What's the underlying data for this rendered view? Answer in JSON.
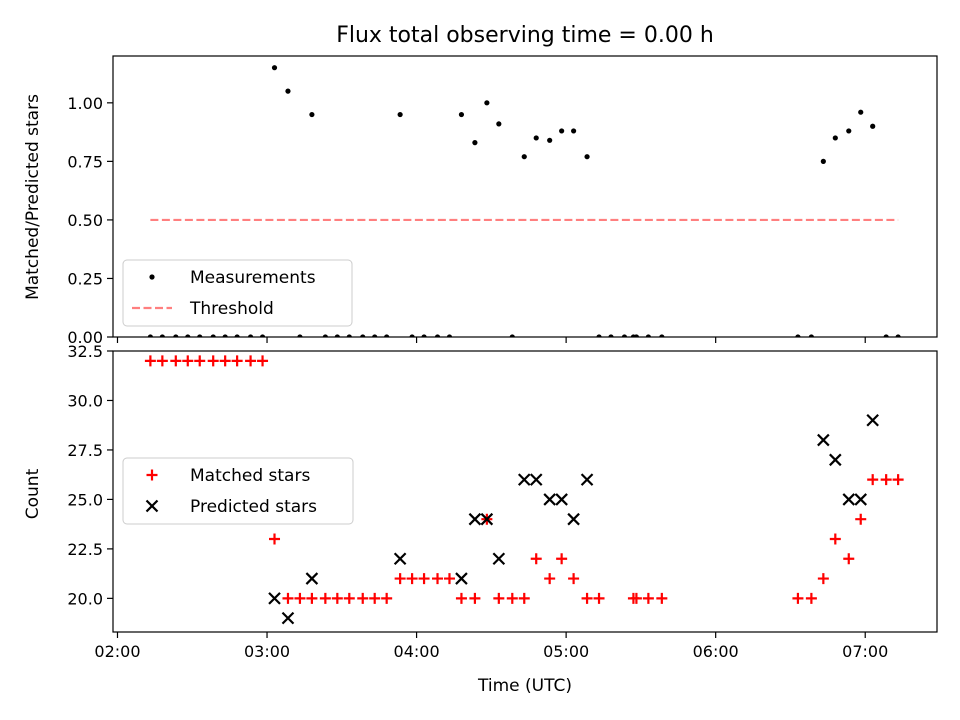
{
  "title": "Flux total observing time = 0.00 h",
  "chart_data": [
    {
      "type": "scatter",
      "ylabel": "Matched/Predicted stars",
      "ylim": [
        0,
        1.2
      ],
      "yticks": [
        0.0,
        0.25,
        0.5,
        0.75,
        1.0
      ],
      "ytick_labels": [
        "0.00",
        "0.25",
        "0.50",
        "0.75",
        "1.00"
      ],
      "xlim_hours": [
        1.97,
        7.48
      ],
      "legend": {
        "placement": "lower-left",
        "entries": [
          "Measurements",
          "Threshold"
        ]
      },
      "series": [
        {
          "name": "Measurements",
          "color": "#000000",
          "marker": "dot",
          "points": [
            [
              2.22,
              0
            ],
            [
              2.3,
              0
            ],
            [
              2.39,
              0
            ],
            [
              2.47,
              0
            ],
            [
              2.55,
              0
            ],
            [
              2.64,
              0
            ],
            [
              2.72,
              0
            ],
            [
              2.8,
              0
            ],
            [
              2.89,
              0
            ],
            [
              2.97,
              0
            ],
            [
              3.05,
              1.15
            ],
            [
              3.14,
              1.05
            ],
            [
              3.22,
              0
            ],
            [
              3.3,
              0.95
            ],
            [
              3.39,
              0
            ],
            [
              3.47,
              0
            ],
            [
              3.55,
              0
            ],
            [
              3.64,
              0
            ],
            [
              3.72,
              0
            ],
            [
              3.8,
              0
            ],
            [
              3.89,
              0.95
            ],
            [
              3.97,
              0
            ],
            [
              4.05,
              0
            ],
            [
              4.14,
              0
            ],
            [
              4.22,
              0
            ],
            [
              4.3,
              0.95
            ],
            [
              4.39,
              0.83
            ],
            [
              4.47,
              1.0
            ],
            [
              4.55,
              0.91
            ],
            [
              4.64,
              0
            ],
            [
              4.72,
              0.77
            ],
            [
              4.8,
              0.85
            ],
            [
              4.89,
              0.84
            ],
            [
              4.97,
              0.88
            ],
            [
              5.05,
              0.88
            ],
            [
              5.14,
              0.77
            ],
            [
              5.22,
              0
            ],
            [
              5.3,
              0
            ],
            [
              5.39,
              0
            ],
            [
              5.45,
              0
            ],
            [
              5.47,
              0
            ],
            [
              5.55,
              0
            ],
            [
              5.64,
              0
            ],
            [
              6.55,
              0
            ],
            [
              6.64,
              0
            ],
            [
              6.72,
              0.75
            ],
            [
              6.8,
              0.85
            ],
            [
              6.89,
              0.88
            ],
            [
              6.97,
              0.96
            ],
            [
              7.05,
              0.9
            ],
            [
              7.14,
              0
            ],
            [
              7.22,
              0
            ]
          ]
        },
        {
          "name": "Threshold",
          "color": "#ff7f7f",
          "style": "dashed",
          "points": [
            [
              2.22,
              0.5
            ],
            [
              7.22,
              0.5
            ]
          ]
        }
      ]
    },
    {
      "type": "scatter",
      "xlabel": "Time (UTC)",
      "ylabel": "Count",
      "ylim": [
        18.3,
        32.5
      ],
      "yticks": [
        20.0,
        22.5,
        25.0,
        27.5,
        30.0,
        32.5
      ],
      "ytick_labels": [
        "20.0",
        "22.5",
        "25.0",
        "27.5",
        "30.0",
        "32.5"
      ],
      "xlim_hours": [
        1.97,
        7.48
      ],
      "xticks_hours": [
        2,
        3,
        4,
        5,
        6,
        7
      ],
      "xtick_labels": [
        "02:00",
        "03:00",
        "04:00",
        "05:00",
        "06:00",
        "07:00"
      ],
      "legend": {
        "placement": "center-left",
        "entries": [
          "Matched stars",
          "Predicted stars"
        ]
      },
      "series": [
        {
          "name": "Matched stars",
          "color": "#ff0000",
          "marker": "plus",
          "points": [
            [
              2.22,
              32
            ],
            [
              2.3,
              32
            ],
            [
              2.39,
              32
            ],
            [
              2.47,
              32
            ],
            [
              2.55,
              32
            ],
            [
              2.64,
              32
            ],
            [
              2.72,
              32
            ],
            [
              2.8,
              32
            ],
            [
              2.89,
              32
            ],
            [
              2.97,
              32
            ],
            [
              3.05,
              23
            ],
            [
              3.14,
              20
            ],
            [
              3.22,
              20
            ],
            [
              3.3,
              20
            ],
            [
              3.39,
              20
            ],
            [
              3.47,
              20
            ],
            [
              3.55,
              20
            ],
            [
              3.64,
              20
            ],
            [
              3.72,
              20
            ],
            [
              3.8,
              20
            ],
            [
              3.89,
              21
            ],
            [
              3.97,
              21
            ],
            [
              4.05,
              21
            ],
            [
              4.14,
              21
            ],
            [
              4.22,
              21
            ],
            [
              4.3,
              20
            ],
            [
              4.39,
              20
            ],
            [
              4.47,
              24
            ],
            [
              4.55,
              20
            ],
            [
              4.64,
              20
            ],
            [
              4.72,
              20
            ],
            [
              4.8,
              22
            ],
            [
              4.89,
              21
            ],
            [
              4.97,
              22
            ],
            [
              5.05,
              21
            ],
            [
              5.14,
              20
            ],
            [
              5.22,
              20
            ],
            [
              5.45,
              20
            ],
            [
              5.47,
              20
            ],
            [
              5.55,
              20
            ],
            [
              5.64,
              20
            ],
            [
              6.55,
              20
            ],
            [
              6.64,
              20
            ],
            [
              6.72,
              21
            ],
            [
              6.8,
              23
            ],
            [
              6.89,
              22
            ],
            [
              6.97,
              24
            ],
            [
              7.05,
              26
            ],
            [
              7.14,
              26
            ],
            [
              7.22,
              26
            ]
          ]
        },
        {
          "name": "Predicted stars",
          "color": "#000000",
          "marker": "x",
          "points": [
            [
              3.05,
              20
            ],
            [
              3.14,
              19
            ],
            [
              3.3,
              21
            ],
            [
              3.89,
              22
            ],
            [
              4.3,
              21
            ],
            [
              4.39,
              24
            ],
            [
              4.47,
              24
            ],
            [
              4.55,
              22
            ],
            [
              4.72,
              26
            ],
            [
              4.8,
              26
            ],
            [
              4.89,
              25
            ],
            [
              4.97,
              25
            ],
            [
              5.05,
              24
            ],
            [
              5.14,
              26
            ],
            [
              6.72,
              28
            ],
            [
              6.8,
              27
            ],
            [
              6.89,
              25
            ],
            [
              6.97,
              25
            ],
            [
              7.05,
              29
            ]
          ]
        }
      ]
    }
  ]
}
